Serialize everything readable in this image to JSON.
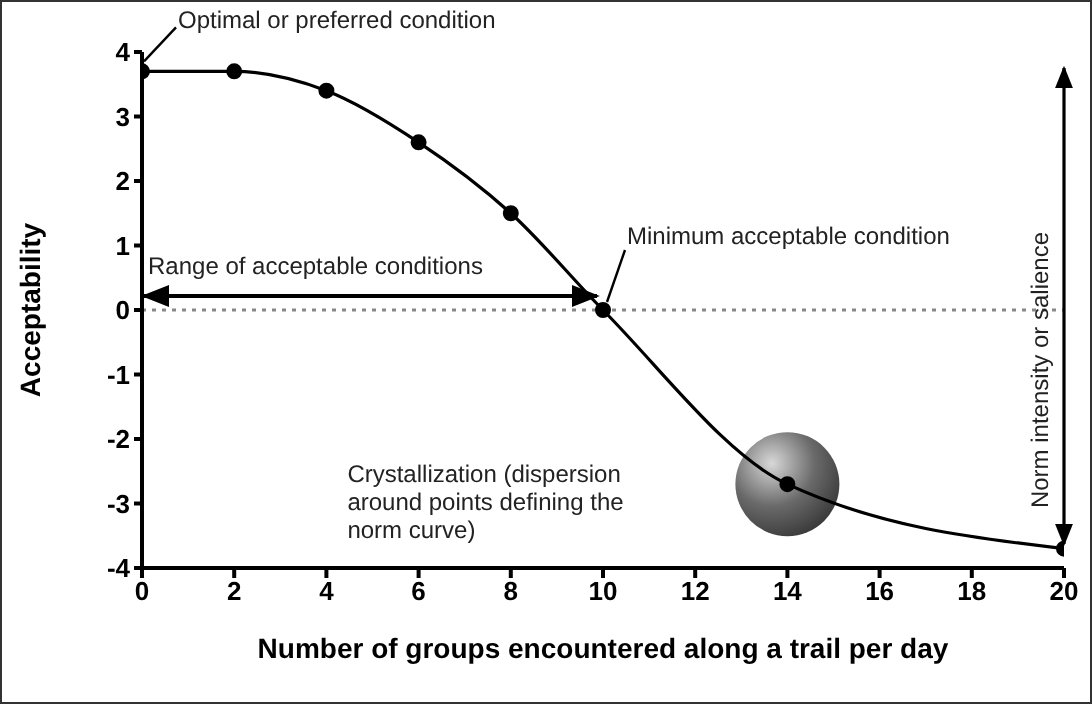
{
  "chart_data": {
    "type": "line",
    "xlabel": "Number of groups encountered along a trail per day",
    "ylabel": "Acceptability",
    "x": [
      0,
      2,
      4,
      6,
      8,
      10,
      14,
      20
    ],
    "series": [
      {
        "color": "#000000",
        "values": [
          3.7,
          3.7,
          3.4,
          2.6,
          1.5,
          0,
          -2.7,
          -3.7
        ]
      }
    ],
    "xlim": [
      0,
      20
    ],
    "xticks": [
      0,
      2,
      4,
      6,
      8,
      10,
      12,
      14,
      16,
      18,
      20
    ],
    "ylim": [
      -4,
      4
    ],
    "yticks": [
      -4,
      -3,
      -2,
      -1,
      0,
      1,
      2,
      3,
      4
    ],
    "grid": false,
    "legend": false,
    "marker": "circle",
    "line_style": "solid",
    "ref_lines": [
      {
        "axis": "y",
        "value": 0,
        "color": "#888888",
        "line_style": "dotted"
      }
    ],
    "annotations": [
      {
        "text": "Optimal or preferred condition",
        "x": 0,
        "y": 3.7
      },
      {
        "text": "Minimum acceptable condition",
        "x": 10,
        "y": 0
      },
      "Crystallization (dispersion around points defining the norm curve)",
      "Range of acceptable conditions",
      "Norm intensity or salience"
    ]
  }
}
